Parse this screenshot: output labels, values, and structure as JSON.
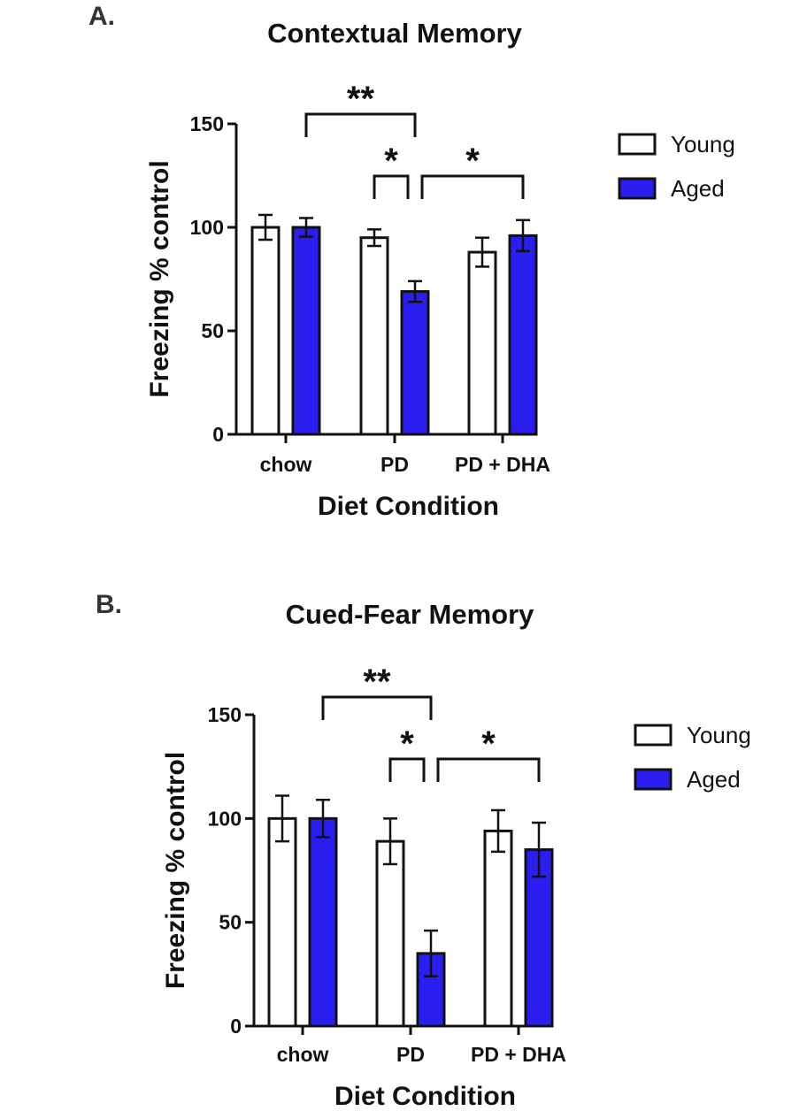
{
  "chart_data": [
    {
      "type": "bar",
      "panel_label": "A.",
      "title": "Contextual Memory",
      "xlabel": "Diet Condition",
      "ylabel": "Freezing % control",
      "ylim": [
        0,
        150
      ],
      "yticks": [
        0,
        50,
        100,
        150
      ],
      "categories": [
        "chow",
        "PD",
        "PD + DHA"
      ],
      "series": [
        {
          "name": "Young",
          "color": "#ffffff",
          "values": [
            100,
            95,
            88
          ],
          "errors": [
            6,
            4,
            7
          ]
        },
        {
          "name": "Aged",
          "color": "#2a1ff0",
          "values": [
            100,
            69,
            96
          ],
          "errors": [
            4.5,
            5,
            7.5
          ]
        }
      ],
      "legend": {
        "position": "top-right",
        "entries": [
          "Young",
          "Aged"
        ]
      },
      "annotations": [
        {
          "text": "**",
          "from": "chow Aged",
          "to": "PD Aged"
        },
        {
          "text": "*",
          "from": "PD Young",
          "to": "PD Aged"
        },
        {
          "text": "*",
          "from": "PD Aged",
          "to": "PD + DHA Aged"
        }
      ]
    },
    {
      "type": "bar",
      "panel_label": "B.",
      "title": "Cued-Fear Memory",
      "xlabel": "Diet Condition",
      "ylabel": "Freezing % control",
      "ylim": [
        0,
        150
      ],
      "yticks": [
        0,
        50,
        100,
        150
      ],
      "categories": [
        "chow",
        "PD",
        "PD + DHA"
      ],
      "series": [
        {
          "name": "Young",
          "color": "#ffffff",
          "values": [
            100,
            89,
            94
          ],
          "errors": [
            11,
            11,
            10
          ]
        },
        {
          "name": "Aged",
          "color": "#2a1ff0",
          "values": [
            100,
            35,
            85
          ],
          "errors": [
            9,
            11,
            13
          ]
        }
      ],
      "legend": {
        "position": "top-right",
        "entries": [
          "Young",
          "Aged"
        ]
      },
      "annotations": [
        {
          "text": "**",
          "from": "chow Aged",
          "to": "PD Aged"
        },
        {
          "text": "*",
          "from": "PD Young",
          "to": "PD Aged"
        },
        {
          "text": "*",
          "from": "PD Aged",
          "to": "PD + DHA Aged"
        }
      ]
    }
  ]
}
